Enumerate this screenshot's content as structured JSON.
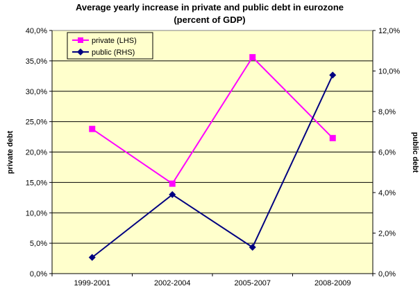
{
  "chart_data": {
    "type": "line",
    "title_line1": "Average yearly increase in private and public debt in eurozone",
    "title_line2": "(percent of GDP)",
    "categories": [
      "1999-2001",
      "2002-2004",
      "2005-2007",
      "2008-2009"
    ],
    "y_left": {
      "label": "private debt",
      "lim": [
        0,
        40
      ],
      "ticks": [
        "0,0%",
        "5,0%",
        "10,0%",
        "15,0%",
        "20,0%",
        "25,0%",
        "30,0%",
        "35,0%",
        "40,0%"
      ]
    },
    "y_right": {
      "label": "public debt",
      "lim": [
        0,
        12
      ],
      "ticks": [
        "0,0%",
        "2,0%",
        "4,0%",
        "6,0%",
        "8,0%",
        "10,0%",
        "12,0%"
      ]
    },
    "series": [
      {
        "name": "private (LHS)",
        "axis": "left",
        "values": [
          23.8,
          14.8,
          35.6,
          22.3
        ],
        "color": "#ff00ff",
        "marker": "square"
      },
      {
        "name": "public (RHS)",
        "axis": "right",
        "values": [
          0.8,
          3.9,
          1.3,
          9.8
        ],
        "color": "#000080",
        "marker": "diamond"
      }
    ],
    "grid": true,
    "legend_position": "top-left",
    "plot_background": "#ffffcc"
  }
}
